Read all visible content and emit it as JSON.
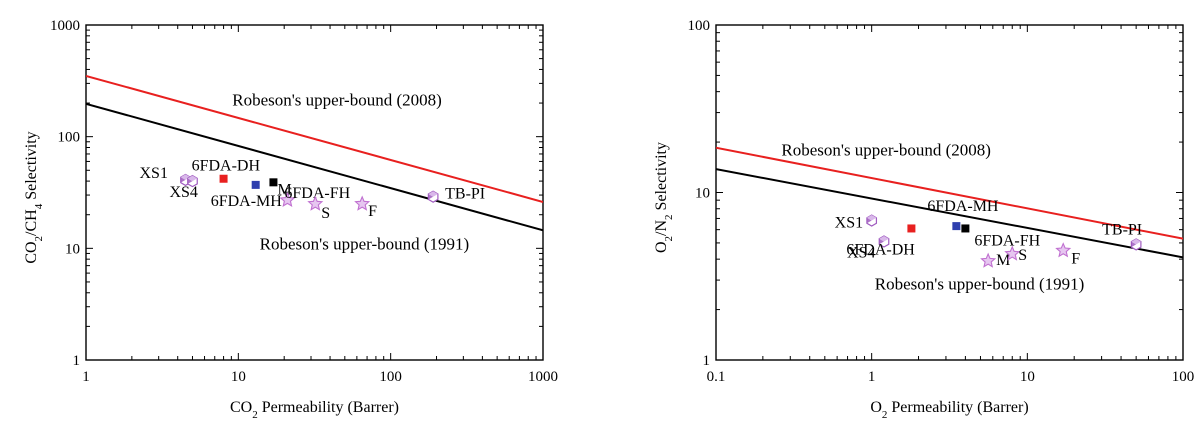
{
  "chart_data": [
    {
      "type": "scatter",
      "xscale": "log",
      "yscale": "log",
      "xlim": [
        1,
        1000
      ],
      "ylim": [
        1,
        1000
      ],
      "xticks": [
        "1",
        "10",
        "100",
        "1000"
      ],
      "yticks": [
        "1",
        "10",
        "100",
        "1000"
      ],
      "xlabel": "CO2 Permeability (Barrer)",
      "ylabel": "CO2/CH4 Selectivity",
      "grid": false,
      "upper_bounds": [
        {
          "name": "Robeson's upper-bound (2008)",
          "color": "#e8201f",
          "points": [
            [
              1,
              350
            ],
            [
              1000,
              26
            ]
          ]
        },
        {
          "name": "Robeson's upper-bound (1991)",
          "color": "#000000",
          "points": [
            [
              1,
              197
            ],
            [
              1000,
              14.5
            ]
          ]
        }
      ],
      "points": [
        {
          "name": "XS1",
          "x": 4.5,
          "y": 41,
          "marker": "hexagon",
          "color": "#a05cc0"
        },
        {
          "name": "XS4",
          "x": 5.0,
          "y": 40,
          "marker": "hexagon",
          "color": "#a05cc0"
        },
        {
          "name": "6FDA-DH",
          "x": 8,
          "y": 42,
          "marker": "square",
          "color": "#e8201f"
        },
        {
          "name": "6FDA-MH",
          "x": 13,
          "y": 37,
          "marker": "square",
          "color": "#2f3fae"
        },
        {
          "name": "M",
          "x": 17,
          "y": 39,
          "marker": "square",
          "color": "#000000"
        },
        {
          "name": "6FDA-FH",
          "x": 21,
          "y": 27,
          "marker": "star",
          "color": "#c070d0"
        },
        {
          "name": "S",
          "x": 32,
          "y": 25,
          "marker": "star",
          "color": "#c070d0"
        },
        {
          "name": "F",
          "x": 65,
          "y": 25,
          "marker": "star",
          "color": "#c070d0"
        },
        {
          "name": "TB-PI",
          "x": 190,
          "y": 29,
          "marker": "hexagon",
          "color": "#a05cc0"
        }
      ]
    },
    {
      "type": "scatter",
      "xscale": "log",
      "yscale": "log",
      "xlim": [
        0.1,
        100
      ],
      "ylim": [
        1,
        100
      ],
      "xticks": [
        "0.1",
        "1",
        "10",
        "100"
      ],
      "yticks": [
        "1",
        "10",
        "100"
      ],
      "xlabel": "O2 Permeability (Barrer)",
      "ylabel": "O2/N2 Selectivity",
      "grid": false,
      "upper_bounds": [
        {
          "name": "Robeson's upper-bound (2008)",
          "color": "#e8201f",
          "points": [
            [
              0.1,
              18.5
            ],
            [
              100,
              5.3
            ]
          ]
        },
        {
          "name": "Robeson's upper-bound (1991)",
          "color": "#000000",
          "points": [
            [
              0.1,
              13.8
            ],
            [
              100,
              4.1
            ]
          ]
        }
      ],
      "points": [
        {
          "name": "XS1",
          "x": 1.0,
          "y": 6.8,
          "marker": "hexagon",
          "color": "#a05cc0"
        },
        {
          "name": "XS4",
          "x": 1.2,
          "y": 5.1,
          "marker": "hexagon",
          "color": "#a05cc0"
        },
        {
          "name": "6FDA-DH",
          "x": 1.8,
          "y": 6.1,
          "marker": "square",
          "color": "#e8201f"
        },
        {
          "name": "6FDA-MH",
          "x": 3.5,
          "y": 6.3,
          "marker": "square",
          "color": "#2f3fae"
        },
        {
          "name": "6FDA-FH",
          "x": 4.0,
          "y": 6.1,
          "marker": "square",
          "color": "#000000"
        },
        {
          "name": "M",
          "x": 5.6,
          "y": 3.9,
          "marker": "star",
          "color": "#c070d0"
        },
        {
          "name": "S",
          "x": 8.0,
          "y": 4.3,
          "marker": "star",
          "color": "#c070d0"
        },
        {
          "name": "F",
          "x": 17,
          "y": 4.5,
          "marker": "star",
          "color": "#c070d0"
        },
        {
          "name": "TB-PI",
          "x": 50,
          "y": 4.9,
          "marker": "hexagon",
          "color": "#a05cc0"
        }
      ]
    }
  ]
}
